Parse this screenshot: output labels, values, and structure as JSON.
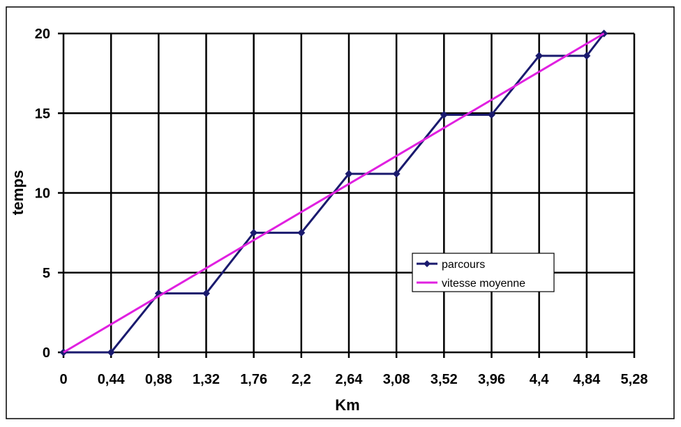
{
  "chart_data": {
    "type": "line",
    "xlabel": "Km",
    "ylabel": "temps",
    "xlim": [
      0,
      5.28
    ],
    "ylim": [
      0,
      20
    ],
    "x_ticks": [
      "0",
      "0,44",
      "0,88",
      "1,32",
      "1,76",
      "2,2",
      "2,64",
      "3,08",
      "3,52",
      "3,96",
      "4,4",
      "4,84",
      "5,28"
    ],
    "y_ticks": [
      "0",
      "5",
      "10",
      "15",
      "20"
    ],
    "grid": true,
    "legend": "right-center",
    "series": [
      {
        "name": "parcours",
        "color": "#1a1a6e",
        "marker": "diamond",
        "x": [
          0,
          0.44,
          0.88,
          1.32,
          1.76,
          2.2,
          2.64,
          3.08,
          3.52,
          3.96,
          4.4,
          4.84,
          5.0
        ],
        "y": [
          0,
          0,
          3.7,
          3.7,
          7.5,
          7.5,
          11.2,
          11.2,
          14.9,
          14.9,
          18.6,
          18.6,
          20
        ]
      },
      {
        "name": "vitesse moyenne",
        "color": "#e020e0",
        "marker": "none",
        "x": [
          0,
          5.0
        ],
        "y": [
          0,
          20
        ]
      }
    ]
  }
}
